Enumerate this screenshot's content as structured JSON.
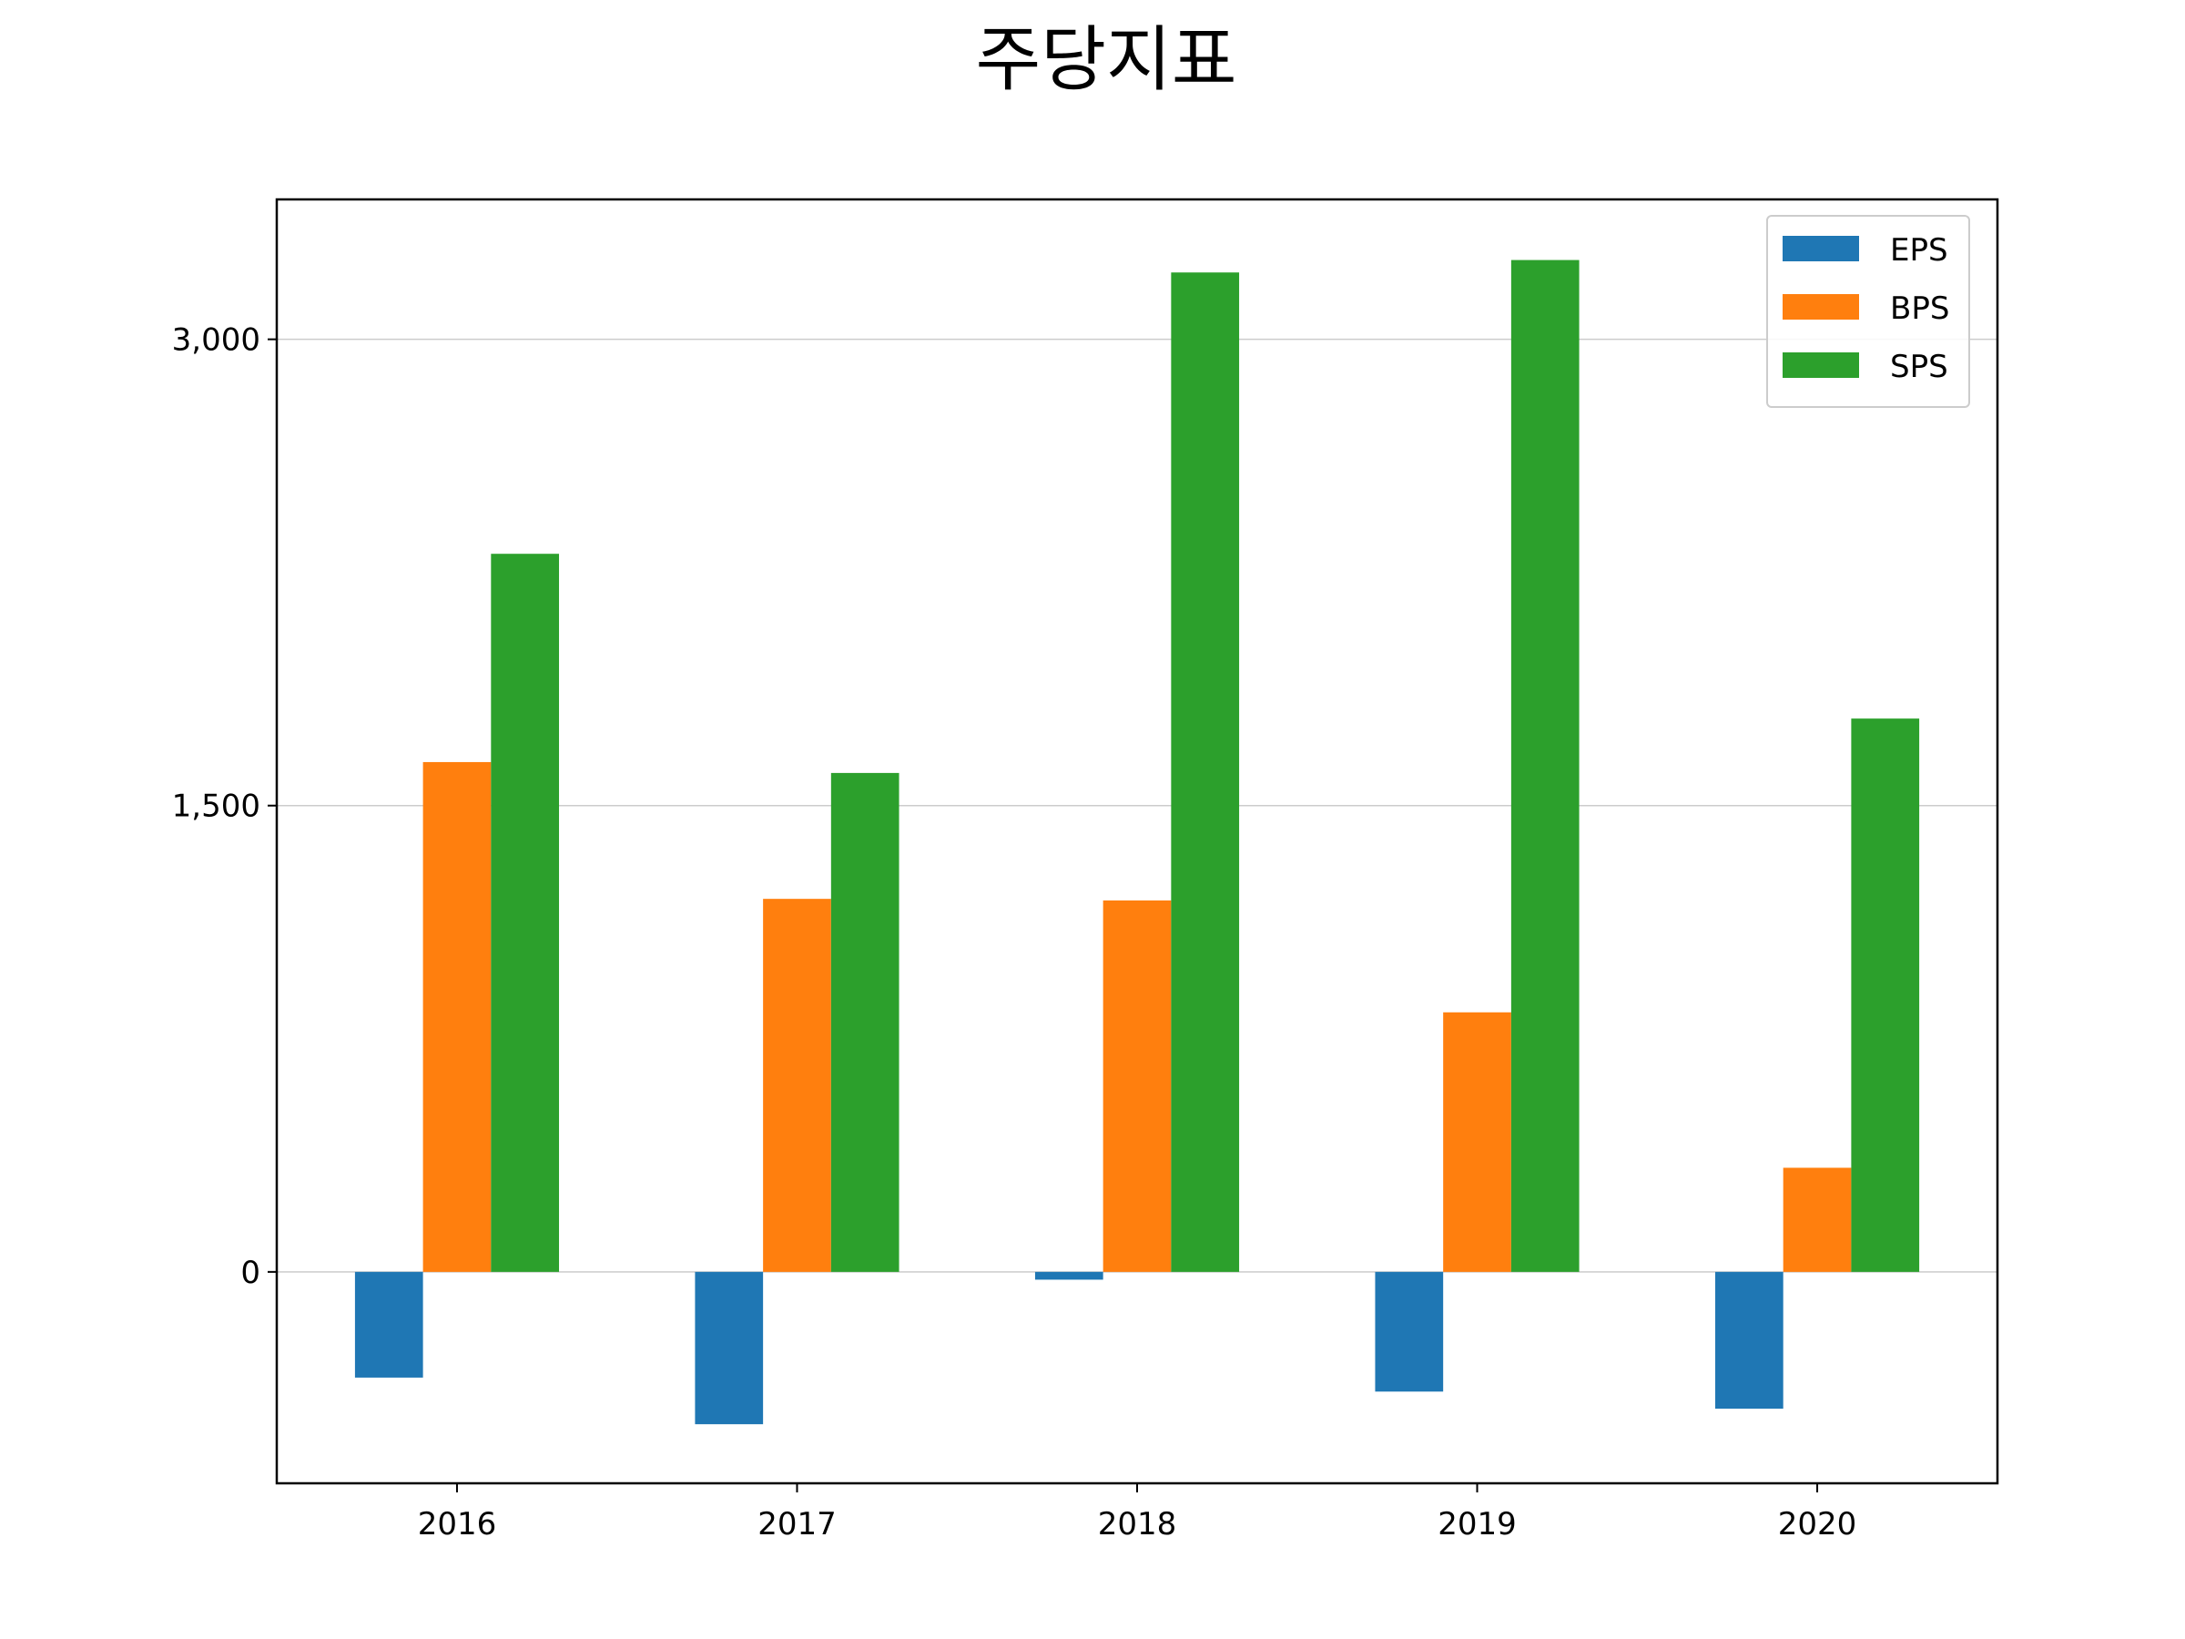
{
  "chart_data": {
    "type": "bar",
    "title": "주당지표",
    "xlabel": "",
    "ylabel": "",
    "categories": [
      "2016",
      "2017",
      "2018",
      "2019",
      "2020"
    ],
    "series": [
      {
        "name": "EPS",
        "color": "#1f77b4",
        "values": [
          -340,
          -490,
          -25,
          -385,
          -440
        ]
      },
      {
        "name": "BPS",
        "color": "#ff7f0e",
        "values": [
          1640,
          1200,
          1195,
          835,
          335
        ]
      },
      {
        "name": "SPS",
        "color": "#2ca02c",
        "values": [
          2310,
          1605,
          3215,
          3255,
          1780
        ]
      }
    ],
    "ylim": [
      -680,
      3450
    ],
    "yticks": [
      0,
      1500,
      3000
    ],
    "ytick_labels": [
      "0",
      "1,500",
      "3,000"
    ],
    "grid": "horizontal",
    "legend_position": "top-right"
  }
}
